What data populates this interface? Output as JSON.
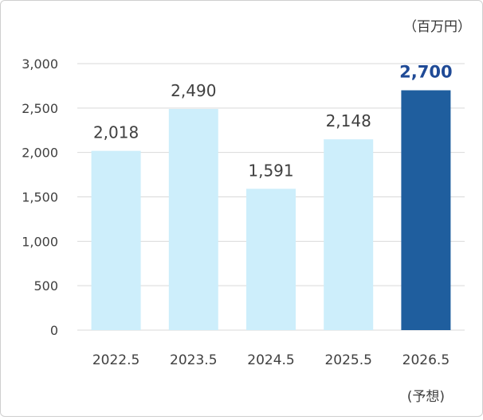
{
  "chart_data": {
    "type": "bar",
    "unit_label": "（百万円）",
    "categories": [
      "2022.5",
      "2023.5",
      "2024.5",
      "2025.5",
      "2026.5"
    ],
    "category_notes": [
      "",
      "",
      "",
      "",
      "(予想)"
    ],
    "values": [
      2018,
      2490,
      1591,
      2148,
      2700
    ],
    "value_labels": [
      "2,018",
      "2,490",
      "1,591",
      "2,148",
      "2,700"
    ],
    "forecast_index": 4,
    "ylim": [
      0,
      3000
    ],
    "yticks": [
      0,
      500,
      1000,
      1500,
      2000,
      2500,
      3000
    ],
    "ytick_labels": [
      "0",
      "500",
      "1,000",
      "1,500",
      "2,000",
      "2,500",
      "3,000"
    ],
    "grid": true,
    "colors": {
      "actual_bar": "#cdeefb",
      "forecast_bar": "#1f5e9e",
      "forecast_label": "#1f4a96",
      "grid": "#d9d9d9",
      "text": "#404040"
    }
  }
}
